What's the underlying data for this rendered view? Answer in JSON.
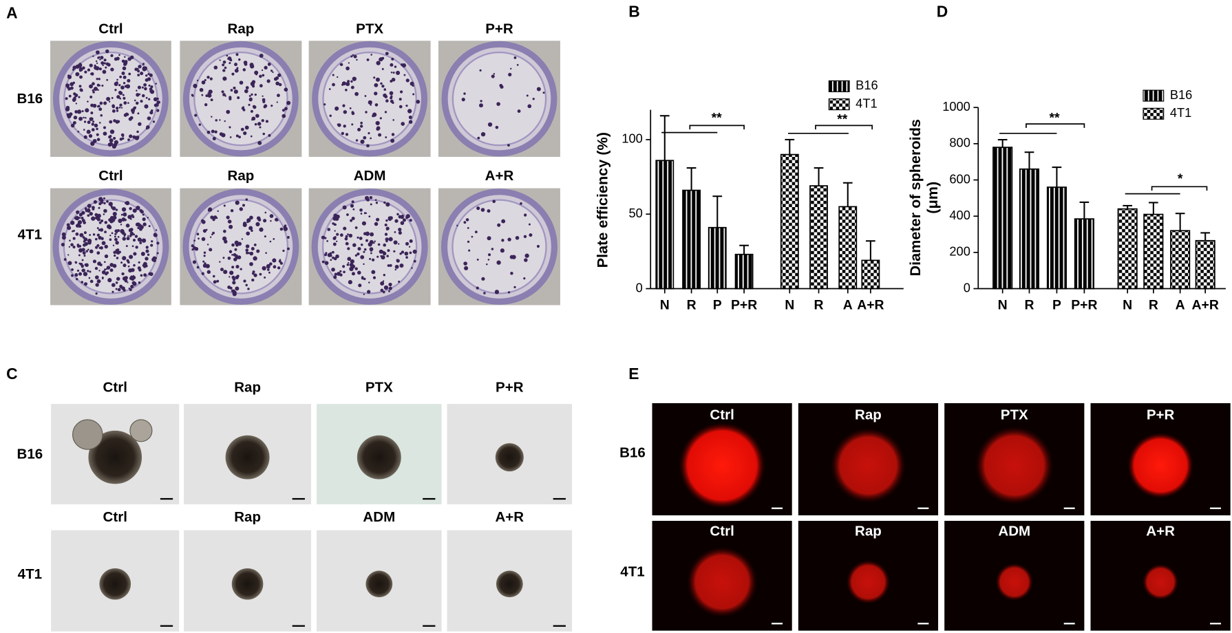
{
  "panels": {
    "A": {
      "label": "A",
      "rows": [
        {
          "label": "B16",
          "columns": [
            "Ctrl",
            "Rap",
            "PTX",
            "P+R"
          ]
        },
        {
          "label": "4T1",
          "columns": [
            "Ctrl",
            "Rap",
            "ADM",
            "A+R"
          ]
        }
      ]
    },
    "C": {
      "label": "C",
      "rows": [
        {
          "label": "B16",
          "columns": [
            "Ctrl",
            "Rap",
            "PTX",
            "P+R"
          ]
        },
        {
          "label": "4T1",
          "columns": [
            "Ctrl",
            "Rap",
            "ADM",
            "A+R"
          ]
        }
      ]
    },
    "E": {
      "label": "E",
      "rows": [
        {
          "label": "B16",
          "columns": [
            "Ctrl",
            "Rap",
            "PTX",
            "P+R"
          ]
        },
        {
          "label": "4T1",
          "columns": [
            "Ctrl",
            "Rap",
            "ADM",
            "A+R"
          ]
        }
      ]
    }
  },
  "chart_data": [
    {
      "type": "bar",
      "panel_label": "B",
      "ylabel": [
        "Plate efficiency (%)"
      ],
      "categories": [
        "N",
        "R",
        "P",
        "P+R",
        "N",
        "R",
        "A",
        "A+R"
      ],
      "series": [
        {
          "name": "B16",
          "color": "#000000",
          "values": [
            86,
            66,
            41,
            23,
            null,
            null,
            null,
            null
          ],
          "errors": [
            30,
            15,
            21,
            6,
            null,
            null,
            null,
            null
          ]
        },
        {
          "name": "4T1",
          "color": "#000000",
          "values": [
            null,
            null,
            null,
            null,
            90,
            69,
            55,
            19
          ],
          "errors": [
            null,
            null,
            null,
            null,
            10,
            12,
            16,
            13
          ]
        }
      ],
      "ylim": [
        0,
        120
      ],
      "yticks": [
        0,
        50,
        100
      ],
      "annotations": [
        "**",
        "**"
      ]
    },
    {
      "type": "bar",
      "panel_label": "D",
      "ylabel": [
        "Diameter of spheroids",
        "(μm)"
      ],
      "categories": [
        "N",
        "R",
        "P",
        "P+R",
        "N",
        "R",
        "A",
        "A+R"
      ],
      "series": [
        {
          "name": "B16",
          "color": "#000000",
          "values": [
            780,
            660,
            560,
            385,
            null,
            null,
            null,
            null
          ],
          "errors": [
            42,
            93,
            110,
            92,
            null,
            null,
            null,
            null
          ]
        },
        {
          "name": "4T1",
          "color": "#000000",
          "values": [
            null,
            null,
            null,
            null,
            440,
            410,
            320,
            265
          ],
          "errors": [
            null,
            null,
            null,
            null,
            18,
            65,
            95,
            43
          ]
        }
      ],
      "ylim": [
        0,
        1000
      ],
      "yticks": [
        0,
        200,
        400,
        600,
        800,
        1000
      ],
      "annotations": [
        "**",
        "*"
      ]
    }
  ]
}
